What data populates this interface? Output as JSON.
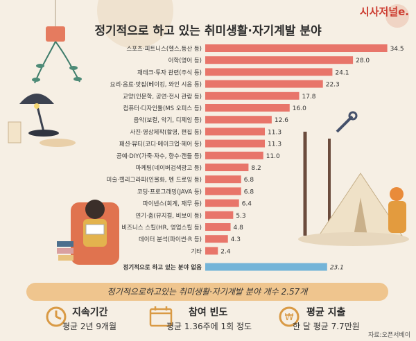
{
  "brand": "시사저널e.",
  "chart_data": {
    "type": "bar",
    "orientation": "horizontal",
    "title": "정기적으로 하고 있는 취미생활·자기계발 분야",
    "categories": [
      "스포츠·피트니스(헬스,등산 등)",
      "어학(영어 등)",
      "재테크·투자 관련(주식 등)",
      "요리·음료·맛집(베이킹, 와인 시음 등)",
      "교양(인문학, 공연·전시 관람 등)",
      "컴퓨터·디자인툴(MS 오피스 등)",
      "음악(보컬, 악기, 디제잉 등)",
      "사진·영상제작(촬영, 편집 등)",
      "패션·뷰티(코디·메이크업·헤어 등)",
      "공예·DIY(가죽·자수, 향수·캔들 등)",
      "마케팅(네이버검색광고 등)",
      "미술·캘리그라피(인물화, 펜 드로잉 등)",
      "코딩·프로그래밍(JAVA 등)",
      "파이넨스(회계, 재무 등)",
      "연기·춤(뮤지컬, 비보이 등)",
      "비즈니스 스킬(HR, 영업스킬 등)",
      "데이터 분석(파이썬·R 등)",
      "기타",
      "정기적으로 하고 있는 분야 없음"
    ],
    "values": [
      34.5,
      28.0,
      24.1,
      22.3,
      17.8,
      16.0,
      12.6,
      11.3,
      11.3,
      11.0,
      8.2,
      6.8,
      6.8,
      6.4,
      5.3,
      4.8,
      4.3,
      2.4,
      23.1
    ],
    "value_labels": [
      "34.5",
      "28.0",
      "24.1",
      "22.3",
      "17.8",
      "16.0",
      "12.6",
      "11.3",
      "11.3",
      "11.0",
      "8.2",
      "6.8",
      "6.8",
      "6.4",
      "5.3",
      "4.8",
      "4.3",
      "2.4",
      "23.1"
    ],
    "highlight_index": 18,
    "xlim": [
      0,
      36
    ],
    "colors": {
      "bar": "#e8756a",
      "highlight": "#74b4d8"
    }
  },
  "summary": "정기적으로하고있는 취미생활·자기계발 분야 개수    2.57개",
  "stats": [
    {
      "label": "지속기간",
      "value": "평균 2년 9개월",
      "icon": "clock-icon"
    },
    {
      "label": "참여 빈도",
      "value": "평균 1.36주에 1회 정도",
      "icon": "calendar-icon"
    },
    {
      "label": "평균 지출",
      "value": "한 달 평균 7.7만원",
      "icon": "coin-icon"
    }
  ],
  "source": "자료:오픈서베이"
}
